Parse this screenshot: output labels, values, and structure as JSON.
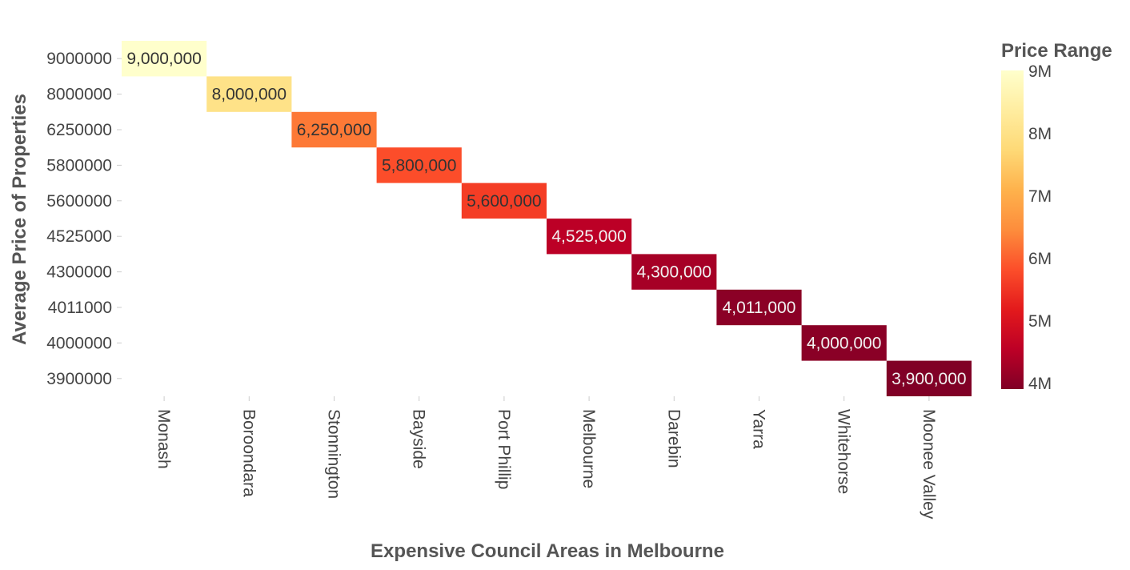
{
  "chart_data": {
    "type": "heatmap",
    "xlabel": "Expensive Council Areas in Melbourne",
    "ylabel": "Average Price of Properties",
    "categories": [
      "Monash",
      "Boroondara",
      "Stonnington",
      "Bayside",
      "Port Phillip",
      "Melbourne",
      "Darebin",
      "Yarra",
      "Whitehorse",
      "Moonee Valley"
    ],
    "y_categories": [
      "9000000",
      "8000000",
      "6250000",
      "5800000",
      "5600000",
      "4525000",
      "4300000",
      "4011000",
      "4000000",
      "3900000"
    ],
    "cells": [
      {
        "x": "Monash",
        "y": "9000000",
        "value": 9000000,
        "label": "9,000,000"
      },
      {
        "x": "Boroondara",
        "y": "8000000",
        "value": 8000000,
        "label": "8,000,000"
      },
      {
        "x": "Stonnington",
        "y": "6250000",
        "value": 6250000,
        "label": "6,250,000"
      },
      {
        "x": "Bayside",
        "y": "5800000",
        "value": 5800000,
        "label": "5,800,000"
      },
      {
        "x": "Port Phillip",
        "y": "5600000",
        "value": 5600000,
        "label": "5,600,000"
      },
      {
        "x": "Melbourne",
        "y": "4525000",
        "value": 4525000,
        "label": "4,525,000"
      },
      {
        "x": "Darebin",
        "y": "4300000",
        "value": 4300000,
        "label": "4,300,000"
      },
      {
        "x": "Yarra",
        "y": "4011000",
        "value": 4011000,
        "label": "4,011,000"
      },
      {
        "x": "Whitehorse",
        "y": "4000000",
        "value": 4000000,
        "label": "4,000,000"
      },
      {
        "x": "Moonee Valley",
        "y": "3900000",
        "value": 3900000,
        "label": "3,900,000"
      }
    ],
    "colorbar": {
      "title": "Price Range",
      "range": [
        3900000,
        9000000
      ],
      "ticks": [
        {
          "value": 4000000,
          "label": "4M"
        },
        {
          "value": 5000000,
          "label": "5M"
        },
        {
          "value": 6000000,
          "label": "6M"
        },
        {
          "value": 7000000,
          "label": "7M"
        },
        {
          "value": 8000000,
          "label": "8M"
        },
        {
          "value": 9000000,
          "label": "9M"
        }
      ],
      "colorscale": [
        [
          0.0,
          "#800026"
        ],
        [
          0.125,
          "#bd0026"
        ],
        [
          0.25,
          "#e31a1c"
        ],
        [
          0.375,
          "#fc4e2a"
        ],
        [
          0.5,
          "#fd8d3c"
        ],
        [
          0.625,
          "#feb24c"
        ],
        [
          0.75,
          "#fed976"
        ],
        [
          0.875,
          "#ffeda0"
        ],
        [
          1.0,
          "#ffffcc"
        ]
      ]
    },
    "grid": false
  }
}
